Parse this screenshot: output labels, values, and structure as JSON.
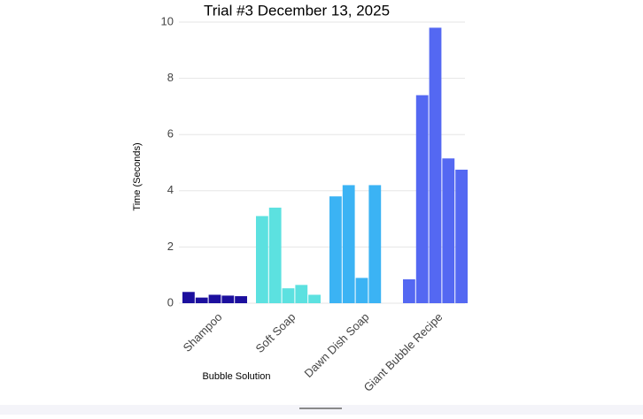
{
  "chart_data": {
    "type": "bar",
    "title": "Trial #3 December 13, 2025",
    "x_label": "Bubble Solution",
    "y_label": "Time (Seconds)",
    "categories": [
      "Shampoo",
      "Soft Soap",
      "Dawn Dish Soap",
      "Giant Bubble Recipe"
    ],
    "colors": [
      "#1c0f9e",
      "#5ce1e0",
      "#3bb3f4",
      "#5468f2"
    ],
    "values": [
      [
        0.4,
        0.2,
        0.3,
        0.27,
        0.25
      ],
      [
        3.1,
        3.4,
        0.53,
        0.65,
        0.3
      ],
      [
        3.8,
        4.2,
        0.9,
        4.2,
        0
      ],
      [
        0.85,
        7.4,
        9.8,
        5.15,
        4.75
      ]
    ],
    "ylim": [
      0,
      10
    ],
    "yticks": [
      0,
      2,
      4,
      6,
      8,
      10
    ],
    "grid": true
  }
}
